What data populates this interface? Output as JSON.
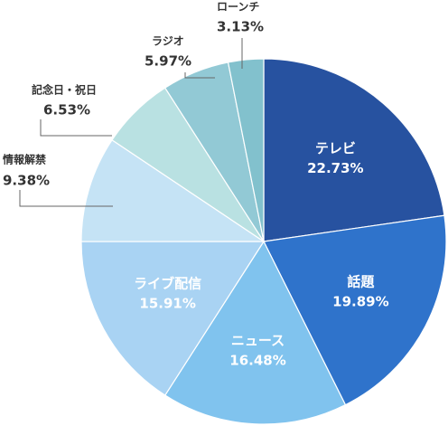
{
  "chart_data": {
    "type": "pie",
    "categories": [
      "テレビ",
      "話題",
      "ニュース",
      "ライブ配信",
      "情報解禁",
      "記念日・祝日",
      "ラジオ",
      "ローンチ"
    ],
    "values": [
      22.73,
      19.89,
      16.48,
      15.91,
      9.38,
      6.53,
      5.97,
      3.13
    ],
    "value_labels": [
      "22.73%",
      "19.89%",
      "16.48%",
      "15.91%",
      "9.38%",
      "6.53%",
      "5.97%",
      "3.13%"
    ],
    "colors": [
      "#2752a0",
      "#2f73cb",
      "#80c3ee",
      "#a9d3f3",
      "#c5e3f5",
      "#b9e1e2",
      "#92c9d5",
      "#82c1cd"
    ]
  }
}
